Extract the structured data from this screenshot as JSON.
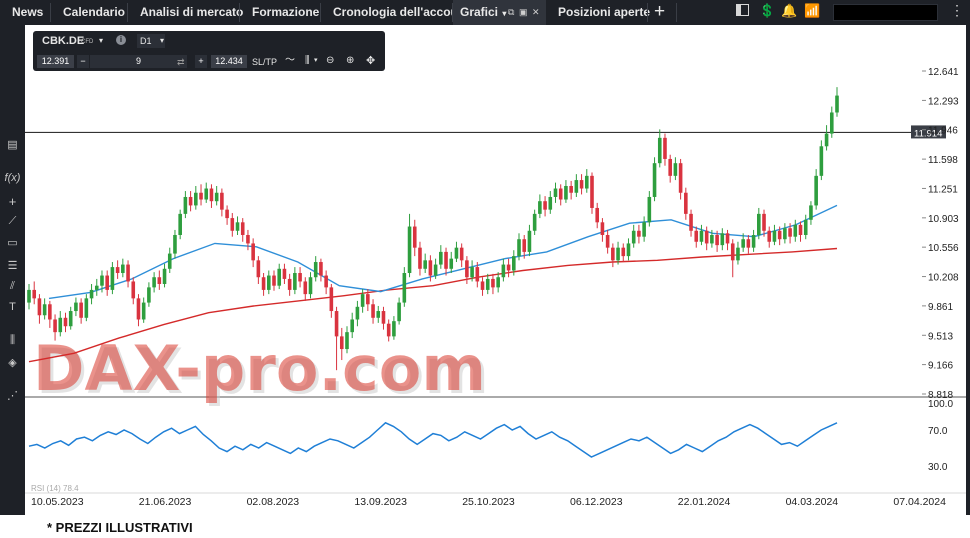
{
  "nav": {
    "tabs": [
      "News",
      "Calendario",
      "Analisi di mercato",
      "Formazione",
      "Cronologia dell'account",
      "Grafici",
      "Posizioni aperte"
    ],
    "add_tab": "+"
  },
  "instrument": {
    "symbol": "CBK.DE",
    "type": "CFD",
    "timeframe": "D1",
    "sell_price": "12.391",
    "quantity": "9",
    "buy_price": "12.434",
    "sltp_label": "SL/TP",
    "minus": "−",
    "plus": "+"
  },
  "watermark": "DAX-pro.com",
  "footnote": "* PREZZI ILLUSTRATIVI",
  "colors": {
    "ui_bg": "#1e2127",
    "bull": "#2e9e3e",
    "bear": "#d9333f",
    "ma_fast": "#2f8fd8",
    "ma_slow": "#d42a2a",
    "rsi": "#1f7fd6",
    "price_tag": "#3a3e46"
  },
  "chart_data": {
    "type": "candlestick",
    "symbol": "CBK.DE",
    "timeframe": "D1",
    "price_axis": [
      "12.641",
      "12.293",
      "11.946",
      "11.598",
      "11.251",
      "10.903",
      "10.556",
      "10.208",
      "9.861",
      "9.513",
      "9.166",
      "8.818"
    ],
    "ylim": [
      8.818,
      12.641
    ],
    "x_labels": [
      "10.05.2023",
      "21.06.2023",
      "02.08.2023",
      "13.09.2023",
      "25.10.2023",
      "06.12.2023",
      "22.01.2024",
      "04.03.2024",
      "07.04.2024"
    ],
    "horizontal_line": {
      "value": 11.914,
      "label": "11.914"
    },
    "ma_fast": [
      9.95,
      10.02,
      10.18,
      10.42,
      10.6,
      10.56,
      10.38,
      10.1,
      10.03,
      10.18,
      10.3,
      10.42,
      10.5,
      10.68,
      10.84,
      10.88,
      10.72,
      10.68,
      10.82,
      11.05
    ],
    "ma_slow": [
      9.2,
      9.3,
      9.48,
      9.64,
      9.78,
      9.86,
      9.92,
      9.98,
      10.05,
      10.1,
      10.2,
      10.28,
      10.34,
      10.38,
      10.4,
      10.44,
      10.47,
      10.5,
      10.54
    ],
    "candles": [
      [
        9.9,
        10.05,
        9.82,
        10.12
      ],
      [
        10.05,
        9.95,
        9.88,
        10.15
      ],
      [
        9.95,
        9.75,
        9.65,
        10.0
      ],
      [
        9.75,
        9.88,
        9.7,
        9.95
      ],
      [
        9.88,
        9.7,
        9.6,
        9.92
      ],
      [
        9.7,
        9.55,
        9.45,
        9.76
      ],
      [
        9.55,
        9.72,
        9.5,
        9.8
      ],
      [
        9.72,
        9.62,
        9.55,
        9.78
      ],
      [
        9.62,
        9.8,
        9.58,
        9.85
      ],
      [
        9.8,
        9.9,
        9.74,
        9.96
      ],
      [
        9.9,
        9.72,
        9.65,
        9.95
      ],
      [
        9.72,
        9.95,
        9.68,
        10.0
      ],
      [
        9.95,
        10.05,
        9.88,
        10.12
      ],
      [
        10.05,
        10.1,
        9.98,
        10.18
      ],
      [
        10.1,
        10.22,
        10.02,
        10.28
      ],
      [
        10.22,
        10.05,
        9.98,
        10.28
      ],
      [
        10.05,
        10.32,
        10.0,
        10.38
      ],
      [
        10.32,
        10.25,
        10.18,
        10.4
      ],
      [
        10.25,
        10.35,
        10.2,
        10.42
      ],
      [
        10.35,
        10.15,
        10.08,
        10.4
      ],
      [
        10.15,
        9.95,
        9.88,
        10.2
      ],
      [
        9.95,
        9.7,
        9.62,
        10.0
      ],
      [
        9.7,
        9.9,
        9.66,
        9.96
      ],
      [
        9.9,
        10.08,
        9.85,
        10.14
      ],
      [
        10.08,
        10.2,
        10.02,
        10.26
      ],
      [
        10.2,
        10.12,
        10.05,
        10.28
      ],
      [
        10.12,
        10.3,
        10.08,
        10.36
      ],
      [
        10.3,
        10.48,
        10.25,
        10.55
      ],
      [
        10.48,
        10.7,
        10.42,
        10.76
      ],
      [
        10.7,
        10.95,
        10.65,
        11.0
      ],
      [
        10.95,
        11.15,
        10.9,
        11.22
      ],
      [
        11.15,
        11.05,
        10.98,
        11.22
      ],
      [
        11.05,
        11.2,
        11.0,
        11.28
      ],
      [
        11.2,
        11.12,
        11.05,
        11.3
      ],
      [
        11.12,
        11.25,
        11.08,
        11.32
      ],
      [
        11.25,
        11.1,
        11.02,
        11.3
      ],
      [
        11.1,
        11.2,
        11.05,
        11.28
      ],
      [
        11.2,
        11.0,
        10.92,
        11.25
      ],
      [
        11.0,
        10.9,
        10.82,
        11.05
      ],
      [
        10.9,
        10.75,
        10.68,
        10.96
      ],
      [
        10.75,
        10.85,
        10.7,
        10.92
      ],
      [
        10.85,
        10.7,
        10.62,
        10.9
      ],
      [
        10.7,
        10.6,
        10.52,
        10.76
      ],
      [
        10.6,
        10.4,
        10.32,
        10.66
      ],
      [
        10.4,
        10.2,
        10.12,
        10.45
      ],
      [
        10.2,
        10.05,
        9.98,
        10.25
      ],
      [
        10.05,
        10.22,
        10.0,
        10.28
      ],
      [
        10.22,
        10.1,
        10.04,
        10.28
      ],
      [
        10.1,
        10.3,
        10.06,
        10.36
      ],
      [
        10.3,
        10.18,
        10.12,
        10.36
      ],
      [
        10.18,
        10.05,
        9.98,
        10.24
      ],
      [
        10.05,
        10.25,
        10.0,
        10.32
      ],
      [
        10.25,
        10.15,
        10.08,
        10.32
      ],
      [
        10.15,
        10.0,
        9.92,
        10.2
      ],
      [
        10.0,
        10.2,
        9.95,
        10.26
      ],
      [
        10.2,
        10.38,
        10.15,
        10.45
      ],
      [
        10.38,
        10.22,
        10.15,
        10.42
      ],
      [
        10.22,
        10.08,
        10.0,
        10.28
      ],
      [
        10.08,
        9.8,
        9.72,
        10.12
      ],
      [
        9.8,
        9.5,
        9.1,
        9.85
      ],
      [
        9.5,
        9.35,
        9.22,
        9.6
      ],
      [
        9.35,
        9.55,
        9.3,
        9.62
      ],
      [
        9.55,
        9.7,
        9.48,
        9.78
      ],
      [
        9.7,
        9.85,
        9.62,
        9.92
      ],
      [
        9.85,
        10.0,
        9.78,
        10.06
      ],
      [
        10.0,
        9.88,
        9.8,
        10.06
      ],
      [
        9.88,
        9.72,
        9.65,
        9.94
      ],
      [
        9.72,
        9.8,
        9.66,
        9.86
      ],
      [
        9.8,
        9.65,
        9.58,
        9.85
      ],
      [
        9.65,
        9.5,
        9.44,
        9.7
      ],
      [
        9.5,
        9.68,
        9.46,
        9.74
      ],
      [
        9.68,
        9.9,
        9.64,
        9.96
      ],
      [
        9.9,
        10.25,
        9.85,
        10.32
      ],
      [
        10.25,
        10.8,
        10.2,
        10.95
      ],
      [
        10.8,
        10.55,
        10.45,
        10.88
      ],
      [
        10.55,
        10.3,
        10.22,
        10.62
      ],
      [
        10.3,
        10.4,
        10.25,
        10.48
      ],
      [
        10.4,
        10.22,
        10.15,
        10.46
      ],
      [
        10.22,
        10.35,
        10.18,
        10.42
      ],
      [
        10.35,
        10.5,
        10.3,
        10.58
      ],
      [
        10.5,
        10.3,
        10.22,
        10.55
      ],
      [
        10.3,
        10.42,
        10.25,
        10.5
      ],
      [
        10.42,
        10.55,
        10.38,
        10.62
      ],
      [
        10.55,
        10.4,
        10.32,
        10.6
      ],
      [
        10.4,
        10.2,
        10.12,
        10.45
      ],
      [
        10.2,
        10.32,
        10.15,
        10.4
      ],
      [
        10.32,
        10.15,
        10.08,
        10.38
      ],
      [
        10.15,
        10.05,
        9.98,
        10.2
      ],
      [
        10.05,
        10.18,
        10.0,
        10.24
      ],
      [
        10.18,
        10.08,
        10.0,
        10.24
      ],
      [
        10.08,
        10.2,
        10.02,
        10.26
      ],
      [
        10.2,
        10.35,
        10.15,
        10.42
      ],
      [
        10.35,
        10.28,
        10.2,
        10.42
      ],
      [
        10.28,
        10.45,
        10.22,
        10.52
      ],
      [
        10.45,
        10.65,
        10.4,
        10.72
      ],
      [
        10.65,
        10.5,
        10.42,
        10.7
      ],
      [
        10.5,
        10.75,
        10.45,
        10.82
      ],
      [
        10.75,
        10.95,
        10.7,
        11.0
      ],
      [
        10.95,
        11.1,
        10.9,
        11.18
      ],
      [
        11.1,
        11.0,
        10.92,
        11.16
      ],
      [
        11.0,
        11.15,
        10.95,
        11.22
      ],
      [
        11.15,
        11.25,
        11.08,
        11.32
      ],
      [
        11.25,
        11.12,
        11.05,
        11.3
      ],
      [
        11.12,
        11.28,
        11.08,
        11.35
      ],
      [
        11.28,
        11.2,
        11.12,
        11.34
      ],
      [
        11.2,
        11.35,
        11.15,
        11.42
      ],
      [
        11.35,
        11.25,
        11.18,
        11.42
      ],
      [
        11.25,
        11.4,
        11.2,
        11.48
      ],
      [
        11.4,
        11.02,
        10.95,
        11.44
      ],
      [
        11.02,
        10.85,
        10.78,
        11.08
      ],
      [
        10.85,
        10.7,
        10.62,
        10.9
      ],
      [
        10.7,
        10.55,
        10.48,
        10.76
      ],
      [
        10.55,
        10.4,
        10.32,
        10.6
      ],
      [
        10.4,
        10.55,
        10.35,
        10.62
      ],
      [
        10.55,
        10.45,
        10.38,
        10.6
      ],
      [
        10.45,
        10.6,
        10.4,
        10.66
      ],
      [
        10.6,
        10.75,
        10.55,
        10.82
      ],
      [
        10.75,
        10.68,
        10.6,
        10.82
      ],
      [
        10.68,
        10.85,
        10.62,
        10.92
      ],
      [
        10.85,
        11.15,
        10.8,
        11.22
      ],
      [
        11.15,
        11.55,
        11.1,
        11.62
      ],
      [
        11.55,
        11.85,
        11.5,
        11.95
      ],
      [
        11.85,
        11.6,
        11.52,
        11.9
      ],
      [
        11.6,
        11.4,
        11.32,
        11.65
      ],
      [
        11.4,
        11.55,
        11.35,
        11.62
      ],
      [
        11.55,
        11.2,
        11.12,
        11.6
      ],
      [
        11.2,
        10.95,
        10.88,
        11.26
      ],
      [
        10.95,
        10.75,
        10.68,
        11.0
      ],
      [
        10.75,
        10.62,
        10.55,
        10.8
      ],
      [
        10.62,
        10.75,
        10.58,
        10.82
      ],
      [
        10.75,
        10.6,
        10.52,
        10.8
      ],
      [
        10.6,
        10.7,
        10.55,
        10.76
      ],
      [
        10.7,
        10.58,
        10.5,
        10.75
      ],
      [
        10.58,
        10.72,
        10.52,
        10.78
      ],
      [
        10.72,
        10.6,
        10.52,
        10.76
      ],
      [
        10.6,
        10.4,
        10.2,
        10.65
      ],
      [
        10.4,
        10.55,
        10.35,
        10.62
      ],
      [
        10.55,
        10.65,
        10.5,
        10.72
      ],
      [
        10.65,
        10.55,
        10.48,
        10.7
      ],
      [
        10.55,
        10.7,
        10.5,
        10.76
      ],
      [
        10.7,
        10.95,
        10.65,
        11.02
      ],
      [
        10.95,
        10.75,
        10.68,
        11.0
      ],
      [
        10.75,
        10.62,
        10.55,
        10.8
      ],
      [
        10.62,
        10.75,
        10.58,
        10.82
      ],
      [
        10.75,
        10.65,
        10.58,
        10.8
      ],
      [
        10.65,
        10.78,
        10.6,
        10.84
      ],
      [
        10.78,
        10.68,
        10.6,
        10.84
      ],
      [
        10.68,
        10.82,
        10.62,
        10.88
      ],
      [
        10.82,
        10.7,
        10.62,
        10.86
      ],
      [
        10.7,
        10.88,
        10.65,
        10.94
      ],
      [
        10.88,
        11.05,
        10.82,
        11.1
      ],
      [
        11.05,
        11.4,
        11.0,
        11.48
      ],
      [
        11.4,
        11.75,
        11.35,
        11.82
      ],
      [
        11.75,
        11.9,
        11.7,
        12.0
      ],
      [
        11.9,
        12.15,
        11.85,
        12.22
      ],
      [
        12.15,
        12.35,
        12.1,
        12.45
      ]
    ],
    "rsi": {
      "label": "RSI (14) 78.4",
      "levels": [
        "100.0",
        "70.0",
        "30.0"
      ],
      "ylim": [
        0,
        100
      ],
      "values": [
        52,
        54,
        50,
        55,
        58,
        53,
        60,
        62,
        58,
        64,
        68,
        65,
        70,
        66,
        60,
        55,
        62,
        68,
        72,
        66,
        70,
        74,
        65,
        58,
        50,
        46,
        52,
        48,
        54,
        50,
        56,
        52,
        48,
        44,
        50,
        46,
        52,
        56,
        60,
        58,
        54,
        50,
        56,
        62,
        70,
        78,
        74,
        68,
        60,
        54,
        60,
        66,
        64,
        58,
        62,
        68,
        64,
        60,
        66,
        72,
        76,
        70,
        74,
        66,
        60,
        64,
        68,
        62,
        58,
        52,
        46,
        40,
        44,
        48,
        52,
        56,
        60,
        58,
        62,
        56,
        50,
        44,
        48,
        54,
        50,
        46,
        52,
        58,
        62,
        68,
        72,
        76,
        72,
        66,
        60,
        54,
        56,
        52,
        58,
        64,
        70,
        74,
        78
      ]
    }
  }
}
